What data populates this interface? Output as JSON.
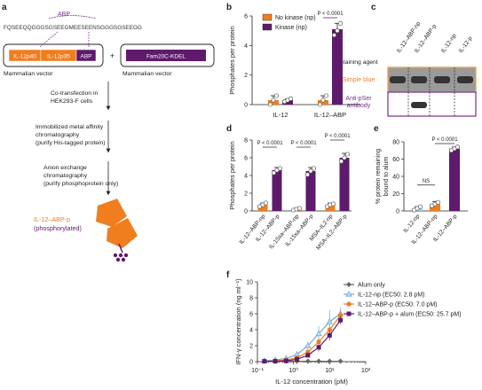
{
  "colors": {
    "orange": "#f07d1e",
    "purple": "#5e1a6b",
    "magenta": "#7b2d8b",
    "lightblue": "#9ecae1",
    "blue": "#6baed6",
    "grey": "#666666",
    "gel_border_orange": "#f0a050",
    "gel_border_purple": "#7b2d8b"
  },
  "panel_a": {
    "letter": "a",
    "abp_label": "ABP",
    "sequence": "FQSEEQQGGGSGSEEGMEESEENSGGGSGSEEGG",
    "construct_blocks": [
      "IL-12p40",
      "IL-12p35",
      "ABP"
    ],
    "plus": "+",
    "kinase_block": "Fam20C-KDEL",
    "vector1": "Mammalian vector",
    "vector2": "Mammalian vector",
    "step1": [
      "Co-transfection in",
      "HEK293-F cells"
    ],
    "step2": [
      "Immobilized metal affinity",
      "chromatography",
      "(purify His-tagged protein)"
    ],
    "step3": [
      "Anion exchange",
      "chromatography",
      "(purify phosphoprotein only)"
    ],
    "product_name": "IL-12–ABP-p",
    "product_note": "(phosphorylated)"
  },
  "panel_c": {
    "letter": "c",
    "lanes": [
      "IL-12–ABP-np",
      "IL-12–ABP-p",
      "IL-12-np",
      "IL-12-p"
    ],
    "staining_label": "Staining agent",
    "row1": "Simple blue",
    "row2": [
      "Anti-pSer",
      "antibody"
    ]
  },
  "chart_data": [
    {
      "panel": "b",
      "type": "bar",
      "ylabel": "Phosphates per protein",
      "ylim": [
        0,
        6
      ],
      "yticks": [
        0,
        2,
        4,
        6
      ],
      "categories": [
        "IL-12",
        "IL-12–ABP"
      ],
      "series": [
        {
          "name": "No kinase (np)",
          "values": [
            0.3,
            0.3
          ],
          "errors": [
            0.3,
            0.3
          ],
          "points": [
            [
              0.0,
              0.3,
              0.6
            ],
            [
              0.0,
              0.3,
              0.6
            ]
          ]
        },
        {
          "name": "Kinase (np)",
          "values": [
            0.3,
            5.1
          ],
          "errors": [
            0.1,
            0.4
          ],
          "points": [
            [
              0.2,
              0.3,
              0.4
            ],
            [
              4.7,
              5.0,
              5.5
            ]
          ]
        }
      ],
      "annotations": [
        {
          "text": "P < 0.0001",
          "between": [
            1,
            1
          ]
        }
      ]
    },
    {
      "panel": "d",
      "type": "bar",
      "ylabel": "Phosphates per protein",
      "ylim": [
        0,
        8
      ],
      "yticks": [
        0,
        2,
        4,
        6,
        8
      ],
      "categories": [
        "IL-12–ABP-np",
        "IL-12–ABP-p",
        "IL-15sa–ABP-np",
        "IL-15sa–ABP-p",
        "MSA–IL2-np",
        "MSA–IL2–ABP-p"
      ],
      "values": [
        0.7,
        4.6,
        0.2,
        4.5,
        0.7,
        6.0
      ],
      "errors": [
        0.2,
        0.3,
        0.1,
        0.4,
        0.2,
        0.5
      ],
      "points": [
        [
          0.5,
          0.7,
          0.9
        ],
        [
          4.3,
          4.6,
          4.8
        ],
        [
          0.1,
          0.2,
          0.3
        ],
        [
          4.1,
          4.5,
          4.8
        ],
        [
          0.5,
          0.7,
          0.8
        ],
        [
          5.6,
          6.0,
          6.4
        ]
      ],
      "bar_colors": [
        "#f07d1e",
        "#5e1a6b",
        "#f07d1e",
        "#5e1a6b",
        "#f07d1e",
        "#5e1a6b"
      ],
      "annotations": [
        {
          "text": "P < 0.0001",
          "between": [
            0,
            1
          ]
        },
        {
          "text": "P < 0.0001",
          "between": [
            2,
            3
          ]
        },
        {
          "text": "P < 0.0001",
          "between": [
            4,
            5
          ]
        }
      ]
    },
    {
      "panel": "e",
      "type": "bar",
      "ylabel": [
        "% protein remaining",
        "bound to alum"
      ],
      "ylim": [
        0,
        80
      ],
      "yticks": [
        0,
        20,
        40,
        60,
        80
      ],
      "categories": [
        "IL-12-np",
        "IL-12–ABP-np",
        "IL-12–ABP-p"
      ],
      "values": [
        3,
        8,
        72
      ],
      "errors": [
        2,
        3,
        2
      ],
      "points": [
        [
          1,
          3,
          5
        ],
        [
          6,
          8,
          10
        ],
        [
          70,
          72,
          74
        ]
      ],
      "bar_colors": [
        "#9ecae1",
        "#f07d1e",
        "#5e1a6b"
      ],
      "annotations": [
        {
          "text": "NS",
          "between": [
            0,
            1
          ]
        },
        {
          "text": "P < 0.0001",
          "between": [
            1,
            2
          ]
        }
      ]
    },
    {
      "panel": "f",
      "type": "line",
      "xlabel": "IL-12 concentration (pM)",
      "ylabel": "IFN-γ concentration (ng ml⁻¹)",
      "xscale": "log",
      "xlim": [
        0.1,
        100
      ],
      "xticks": [
        0.1,
        1,
        10,
        100
      ],
      "xtick_labels": [
        "10⁻¹",
        "10⁰",
        "10¹",
        "10²"
      ],
      "ylim": [
        0,
        10
      ],
      "yticks": [
        0,
        2,
        4,
        6,
        8,
        10
      ],
      "x": [
        0.156,
        0.3125,
        0.625,
        1.25,
        2.5,
        5,
        10,
        20
      ],
      "series": [
        {
          "name": "Alum only",
          "color": "#666666",
          "marker": "diamond",
          "values": [
            0.05,
            0.05,
            0.05,
            0.05,
            0.05,
            0.05,
            0.05,
            0.05
          ],
          "errors": [
            0,
            0,
            0,
            0,
            0,
            0,
            0,
            0
          ]
        },
        {
          "name": "IL-12-np (EC50: 2.8 pM)",
          "color": "#6baed6",
          "marker": "triangle",
          "values": [
            0.1,
            0.2,
            0.4,
            0.9,
            2.0,
            3.5,
            5.0,
            6.0
          ],
          "errors": [
            0.1,
            0.1,
            0.2,
            0.3,
            0.5,
            1.0,
            1.5,
            0.8
          ]
        },
        {
          "name": "IL-12–ABP-p (EC50: 7.0 pM)",
          "color": "#f07d1e",
          "marker": "circle",
          "values": [
            0.05,
            0.1,
            0.2,
            0.5,
            1.2,
            2.5,
            4.0,
            5.8
          ],
          "errors": [
            0.05,
            0.1,
            0.1,
            0.2,
            0.4,
            0.6,
            0.8,
            0.6
          ]
        },
        {
          "name": "IL-12–ABP-p + alum (EC50: 25.7 pM)",
          "color": "#5e1a6b",
          "marker": "square",
          "values": [
            0.05,
            0.05,
            0.1,
            0.3,
            0.8,
            1.8,
            3.3,
            5.2
          ],
          "errors": [
            0.05,
            0.05,
            0.1,
            0.2,
            0.3,
            0.5,
            0.6,
            0.5
          ]
        }
      ]
    }
  ]
}
